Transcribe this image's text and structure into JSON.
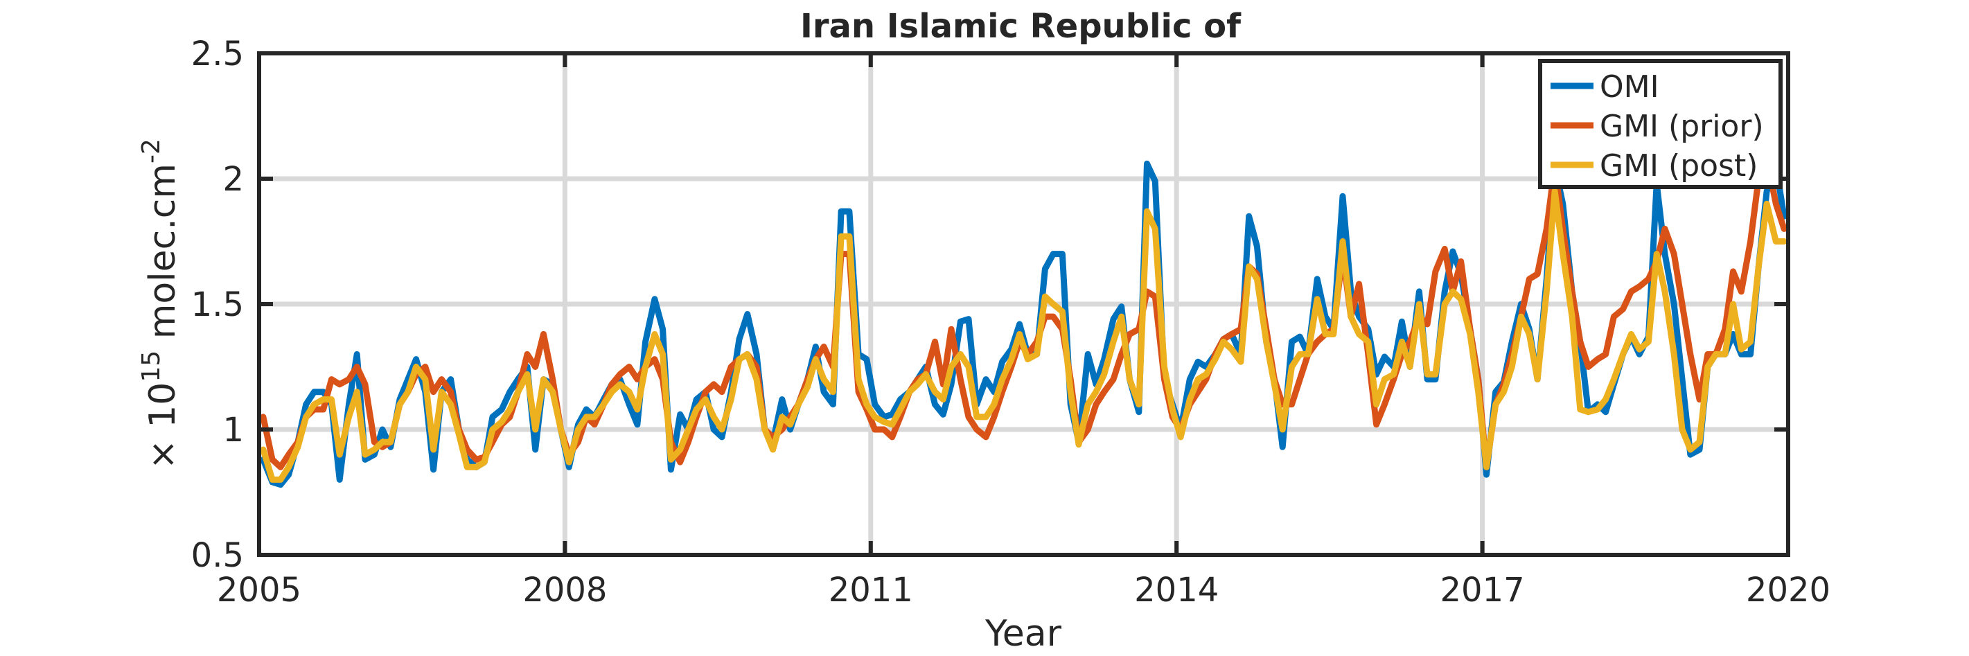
{
  "chart_data": {
    "type": "line",
    "title": "Iran Islamic Republic of",
    "xlabel": "Year",
    "ylabel": {
      "prefix": "× 10",
      "exponent": "15",
      "unit": " molec.cm",
      "unit_exponent": "-2"
    },
    "xlim": [
      2005,
      2020
    ],
    "ylim": [
      0.5,
      2.5
    ],
    "xticks": [
      2005,
      2008,
      2011,
      2014,
      2017,
      2020
    ],
    "xtick_labels": [
      "2005",
      "2008",
      "2011",
      "2014",
      "2017",
      "2020"
    ],
    "yticks": [
      0.5,
      1,
      1.5,
      2,
      2.5
    ],
    "ytick_labels": [
      "0.5",
      "1",
      "1.5",
      "2",
      "2.5"
    ],
    "grid": true,
    "legend_position": "top-right",
    "x": [
      2005.04,
      2005.13,
      2005.21,
      2005.29,
      2005.38,
      2005.46,
      2005.54,
      2005.63,
      2005.71,
      2005.79,
      2005.88,
      2005.96,
      2006.04,
      2006.13,
      2006.21,
      2006.29,
      2006.38,
      2006.46,
      2006.54,
      2006.63,
      2006.71,
      2006.79,
      2006.88,
      2006.96,
      2007.04,
      2007.13,
      2007.21,
      2007.29,
      2007.38,
      2007.46,
      2007.54,
      2007.63,
      2007.71,
      2007.79,
      2007.88,
      2007.96,
      2008.04,
      2008.13,
      2008.21,
      2008.29,
      2008.38,
      2008.46,
      2008.54,
      2008.63,
      2008.71,
      2008.79,
      2008.88,
      2008.96,
      2009.04,
      2009.13,
      2009.21,
      2009.29,
      2009.38,
      2009.46,
      2009.54,
      2009.63,
      2009.71,
      2009.79,
      2009.88,
      2009.96,
      2010.04,
      2010.13,
      2010.21,
      2010.29,
      2010.38,
      2010.46,
      2010.54,
      2010.63,
      2010.71,
      2010.79,
      2010.88,
      2010.96,
      2011.04,
      2011.13,
      2011.21,
      2011.29,
      2011.38,
      2011.46,
      2011.54,
      2011.63,
      2011.71,
      2011.79,
      2011.88,
      2011.96,
      2012.04,
      2012.13,
      2012.21,
      2012.29,
      2012.38,
      2012.46,
      2012.54,
      2012.63,
      2012.71,
      2012.79,
      2012.88,
      2012.96,
      2013.04,
      2013.13,
      2013.21,
      2013.29,
      2013.38,
      2013.46,
      2013.54,
      2013.63,
      2013.71,
      2013.79,
      2013.88,
      2013.96,
      2014.04,
      2014.13,
      2014.21,
      2014.29,
      2014.38,
      2014.46,
      2014.54,
      2014.63,
      2014.71,
      2014.79,
      2014.88,
      2014.96,
      2015.04,
      2015.13,
      2015.21,
      2015.29,
      2015.38,
      2015.46,
      2015.54,
      2015.63,
      2015.71,
      2015.79,
      2015.88,
      2015.96,
      2016.04,
      2016.13,
      2016.21,
      2016.29,
      2016.38,
      2016.46,
      2016.54,
      2016.63,
      2016.71,
      2016.79,
      2016.88,
      2016.96,
      2017.04,
      2017.13,
      2017.21,
      2017.29,
      2017.38,
      2017.46,
      2017.54,
      2017.63,
      2017.71,
      2017.79,
      2017.88,
      2017.96,
      2018.04,
      2018.13,
      2018.21,
      2018.29,
      2018.38,
      2018.46,
      2018.54,
      2018.63,
      2018.71,
      2018.79,
      2018.88,
      2018.96,
      2019.04,
      2019.13,
      2019.21,
      2019.29,
      2019.38,
      2019.46,
      2019.54,
      2019.63,
      2019.71,
      2019.79,
      2019.88,
      2019.96
    ],
    "series": [
      {
        "name": "OMI",
        "color": "#0072BD",
        "values": [
          0.88,
          0.79,
          0.78,
          0.82,
          0.95,
          1.1,
          1.15,
          1.15,
          1.1,
          0.8,
          1.1,
          1.3,
          0.88,
          0.9,
          1.0,
          0.93,
          1.12,
          1.2,
          1.28,
          1.15,
          0.84,
          1.15,
          1.2,
          1.0,
          0.88,
          0.85,
          0.87,
          1.05,
          1.08,
          1.15,
          1.2,
          1.25,
          0.92,
          1.2,
          1.18,
          1.0,
          0.85,
          1.02,
          1.08,
          1.05,
          1.12,
          1.18,
          1.2,
          1.1,
          1.02,
          1.35,
          1.52,
          1.4,
          0.84,
          1.06,
          1.0,
          1.12,
          1.15,
          1.0,
          0.97,
          1.15,
          1.36,
          1.46,
          1.3,
          1.0,
          0.95,
          1.12,
          1.0,
          1.1,
          1.2,
          1.33,
          1.15,
          1.1,
          1.87,
          1.87,
          1.3,
          1.28,
          1.1,
          1.05,
          1.06,
          1.12,
          1.15,
          1.2,
          1.25,
          1.1,
          1.06,
          1.18,
          1.43,
          1.44,
          1.1,
          1.2,
          1.15,
          1.27,
          1.32,
          1.42,
          1.3,
          1.3,
          1.64,
          1.7,
          1.7,
          1.1,
          0.95,
          1.3,
          1.18,
          1.28,
          1.44,
          1.49,
          1.2,
          1.07,
          2.06,
          1.99,
          1.2,
          1.1,
          1.0,
          1.2,
          1.27,
          1.25,
          1.3,
          1.36,
          1.38,
          1.3,
          1.85,
          1.73,
          1.35,
          1.2,
          0.93,
          1.35,
          1.37,
          1.3,
          1.6,
          1.45,
          1.4,
          1.93,
          1.55,
          1.45,
          1.4,
          1.22,
          1.29,
          1.25,
          1.43,
          1.25,
          1.55,
          1.2,
          1.2,
          1.55,
          1.71,
          1.62,
          1.4,
          1.2,
          0.82,
          1.15,
          1.19,
          1.35,
          1.5,
          1.4,
          1.2,
          1.6,
          2.05,
          1.9,
          1.55,
          1.35,
          1.07,
          1.1,
          1.07,
          1.18,
          1.3,
          1.37,
          1.3,
          1.37,
          1.98,
          1.7,
          1.5,
          1.2,
          0.9,
          0.92,
          1.25,
          1.3,
          1.3,
          1.38,
          1.3,
          1.3,
          1.65,
          1.95,
          2.05,
          1.85
        ]
      },
      {
        "name": "GMI (prior)",
        "color": "#D95319",
        "values": [
          1.05,
          0.88,
          0.85,
          0.9,
          0.95,
          1.05,
          1.08,
          1.08,
          1.2,
          1.18,
          1.2,
          1.25,
          1.18,
          0.95,
          0.93,
          0.95,
          1.1,
          1.15,
          1.22,
          1.25,
          1.15,
          1.2,
          1.15,
          1.0,
          0.92,
          0.88,
          0.89,
          0.95,
          1.02,
          1.05,
          1.15,
          1.3,
          1.25,
          1.38,
          1.2,
          1.0,
          0.9,
          0.95,
          1.05,
          1.02,
          1.1,
          1.18,
          1.22,
          1.25,
          1.2,
          1.25,
          1.28,
          1.2,
          0.95,
          0.87,
          0.95,
          1.05,
          1.15,
          1.18,
          1.15,
          1.25,
          1.28,
          1.3,
          1.25,
          1.0,
          0.97,
          1.0,
          1.05,
          1.1,
          1.2,
          1.28,
          1.33,
          1.25,
          1.7,
          1.7,
          1.15,
          1.08,
          1.0,
          1.0,
          0.97,
          1.05,
          1.15,
          1.2,
          1.22,
          1.35,
          1.18,
          1.4,
          1.2,
          1.05,
          1.0,
          0.97,
          1.05,
          1.15,
          1.25,
          1.35,
          1.3,
          1.35,
          1.45,
          1.45,
          1.4,
          1.2,
          0.95,
          1.0,
          1.1,
          1.15,
          1.2,
          1.3,
          1.38,
          1.4,
          1.55,
          1.53,
          1.2,
          1.05,
          1.0,
          1.1,
          1.15,
          1.2,
          1.3,
          1.36,
          1.38,
          1.4,
          1.65,
          1.62,
          1.4,
          1.2,
          1.1,
          1.1,
          1.2,
          1.3,
          1.35,
          1.38,
          1.4,
          1.7,
          1.45,
          1.58,
          1.3,
          1.02,
          1.1,
          1.2,
          1.3,
          1.35,
          1.45,
          1.42,
          1.63,
          1.72,
          1.55,
          1.67,
          1.4,
          1.2,
          0.85,
          1.1,
          1.18,
          1.3,
          1.45,
          1.6,
          1.62,
          1.8,
          2.05,
          1.8,
          1.55,
          1.35,
          1.25,
          1.28,
          1.3,
          1.45,
          1.48,
          1.55,
          1.57,
          1.6,
          1.67,
          1.8,
          1.7,
          1.5,
          1.3,
          1.12,
          1.3,
          1.3,
          1.4,
          1.63,
          1.55,
          1.75,
          2.0,
          2.08,
          1.9,
          1.8
        ]
      },
      {
        "name": "GMI (post)",
        "color": "#EDB120",
        "values": [
          0.92,
          0.8,
          0.8,
          0.85,
          0.93,
          1.05,
          1.1,
          1.12,
          1.12,
          0.9,
          1.05,
          1.15,
          0.9,
          0.92,
          0.95,
          0.95,
          1.1,
          1.15,
          1.25,
          1.2,
          0.92,
          1.15,
          1.1,
          0.98,
          0.85,
          0.85,
          0.87,
          1.0,
          1.03,
          1.08,
          1.15,
          1.22,
          1.0,
          1.2,
          1.15,
          1.0,
          0.87,
          1.0,
          1.05,
          1.05,
          1.1,
          1.15,
          1.18,
          1.15,
          1.08,
          1.25,
          1.38,
          1.3,
          0.88,
          0.92,
          1.0,
          1.08,
          1.12,
          1.05,
          1.0,
          1.12,
          1.28,
          1.3,
          1.2,
          1.0,
          0.92,
          1.05,
          1.02,
          1.1,
          1.17,
          1.28,
          1.2,
          1.15,
          1.77,
          1.77,
          1.2,
          1.1,
          1.05,
          1.03,
          1.02,
          1.08,
          1.15,
          1.18,
          1.22,
          1.15,
          1.12,
          1.25,
          1.3,
          1.25,
          1.05,
          1.05,
          1.1,
          1.2,
          1.28,
          1.38,
          1.28,
          1.3,
          1.53,
          1.5,
          1.47,
          1.15,
          0.94,
          1.1,
          1.15,
          1.22,
          1.35,
          1.45,
          1.2,
          1.1,
          1.87,
          1.8,
          1.25,
          1.08,
          0.97,
          1.12,
          1.2,
          1.22,
          1.28,
          1.35,
          1.32,
          1.27,
          1.65,
          1.6,
          1.35,
          1.18,
          1.0,
          1.25,
          1.3,
          1.3,
          1.52,
          1.38,
          1.38,
          1.75,
          1.45,
          1.38,
          1.35,
          1.1,
          1.2,
          1.22,
          1.35,
          1.25,
          1.5,
          1.22,
          1.22,
          1.5,
          1.55,
          1.52,
          1.38,
          1.15,
          0.85,
          1.1,
          1.15,
          1.25,
          1.45,
          1.38,
          1.2,
          1.55,
          1.95,
          1.7,
          1.45,
          1.08,
          1.07,
          1.08,
          1.12,
          1.2,
          1.3,
          1.38,
          1.32,
          1.35,
          1.7,
          1.55,
          1.3,
          1.0,
          0.92,
          0.95,
          1.25,
          1.3,
          1.3,
          1.5,
          1.32,
          1.35,
          1.65,
          1.9,
          1.75,
          1.75
        ]
      }
    ]
  }
}
